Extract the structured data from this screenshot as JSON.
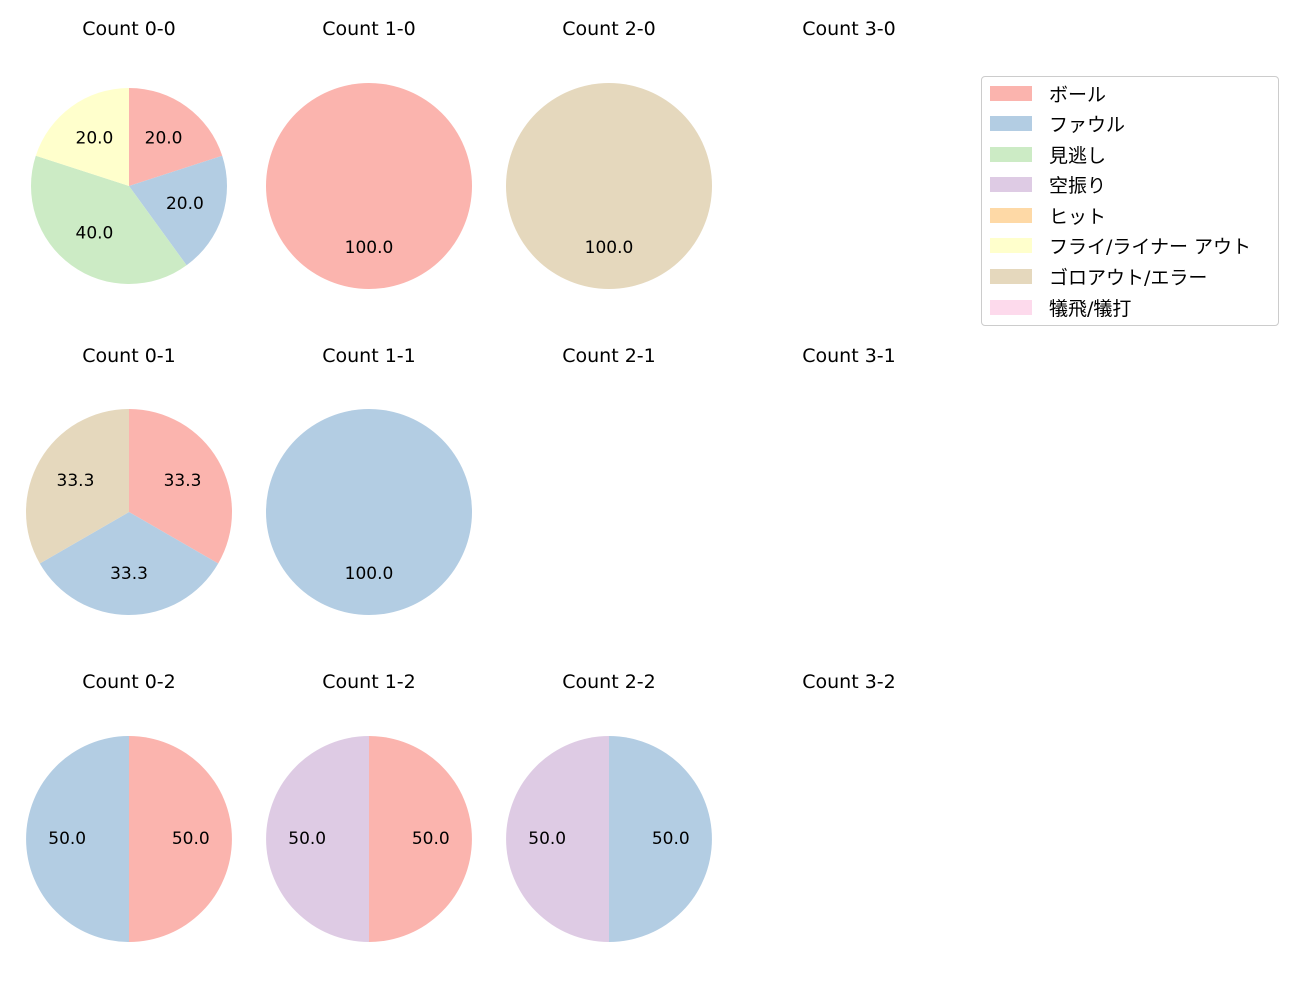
{
  "chart_data": {
    "type": "pie",
    "title": "",
    "legend_position": "upper right",
    "categories": [
      "ボール",
      "ファウル",
      "見逃し",
      "空振り",
      "ヒット",
      "フライ/ライナー アウト",
      "ゴロアウト/エラー",
      "犠飛/犠打"
    ],
    "colors": [
      "#fbb4ae",
      "#b3cde3",
      "#ccebc5",
      "#decbe4",
      "#fed9a6",
      "#ffffcc",
      "#e5d8bd",
      "#fddaec"
    ],
    "panels": [
      {
        "title": "Count 0-0",
        "row": 0,
        "col": 0,
        "values": [
          20,
          20,
          40,
          0,
          0,
          20,
          0,
          0
        ],
        "labels": [
          "20.0",
          "20.0",
          "40.0",
          "",
          "",
          "20.0",
          "",
          ""
        ]
      },
      {
        "title": "Count 1-0",
        "row": 0,
        "col": 1,
        "values": [
          100,
          0,
          0,
          0,
          0,
          0,
          0,
          0
        ],
        "labels": [
          "100.0",
          "",
          "",
          "",
          "",
          "",
          "",
          ""
        ]
      },
      {
        "title": "Count 2-0",
        "row": 0,
        "col": 2,
        "values": [
          0,
          0,
          0,
          0,
          0,
          0,
          100,
          0
        ],
        "labels": [
          "",
          "",
          "",
          "",
          "",
          "",
          "100.0",
          ""
        ]
      },
      {
        "title": "Count 3-0",
        "row": 0,
        "col": 3,
        "values": []
      },
      {
        "title": "Count 0-1",
        "row": 1,
        "col": 0,
        "values": [
          33.3,
          33.3,
          0,
          0,
          0,
          0,
          33.3,
          0
        ],
        "labels": [
          "33.3",
          "33.3",
          "",
          "",
          "",
          "",
          "33.3",
          ""
        ]
      },
      {
        "title": "Count 1-1",
        "row": 1,
        "col": 1,
        "values": [
          0,
          100,
          0,
          0,
          0,
          0,
          0,
          0
        ],
        "labels": [
          "",
          "100.0",
          "",
          "",
          "",
          "",
          "",
          ""
        ]
      },
      {
        "title": "Count 2-1",
        "row": 1,
        "col": 2,
        "values": []
      },
      {
        "title": "Count 3-1",
        "row": 1,
        "col": 3,
        "values": []
      },
      {
        "title": "Count 0-2",
        "row": 2,
        "col": 0,
        "values": [
          50,
          50,
          0,
          0,
          0,
          0,
          0,
          0
        ],
        "labels": [
          "50.0",
          "50.0",
          "",
          "",
          "",
          "",
          "",
          ""
        ]
      },
      {
        "title": "Count 1-2",
        "row": 2,
        "col": 1,
        "values": [
          50,
          0,
          0,
          50,
          0,
          0,
          0,
          0
        ],
        "labels": [
          "50.0",
          "",
          "",
          "50.0",
          "",
          "",
          "",
          ""
        ]
      },
      {
        "title": "Count 2-2",
        "row": 2,
        "col": 2,
        "values": [
          0,
          50,
          0,
          50,
          0,
          0,
          0,
          0
        ],
        "labels": [
          "",
          "50.0",
          "",
          "50.0",
          "",
          "",
          "",
          ""
        ]
      },
      {
        "title": "Count 3-2",
        "row": 2,
        "col": 3,
        "values": []
      }
    ]
  },
  "legend": {
    "items": [
      {
        "label": "ボール",
        "color": "#fbb4ae"
      },
      {
        "label": "ファウル",
        "color": "#b3cde3"
      },
      {
        "label": "見逃し",
        "color": "#ccebc5"
      },
      {
        "label": "空振り",
        "color": "#decbe4"
      },
      {
        "label": "ヒット",
        "color": "#fed9a6"
      },
      {
        "label": "フライ/ライナー アウト",
        "color": "#ffffcc"
      },
      {
        "label": "ゴロアウト/エラー",
        "color": "#e5d8bd"
      },
      {
        "label": "犠飛/犠打",
        "color": "#fddaec"
      }
    ]
  }
}
